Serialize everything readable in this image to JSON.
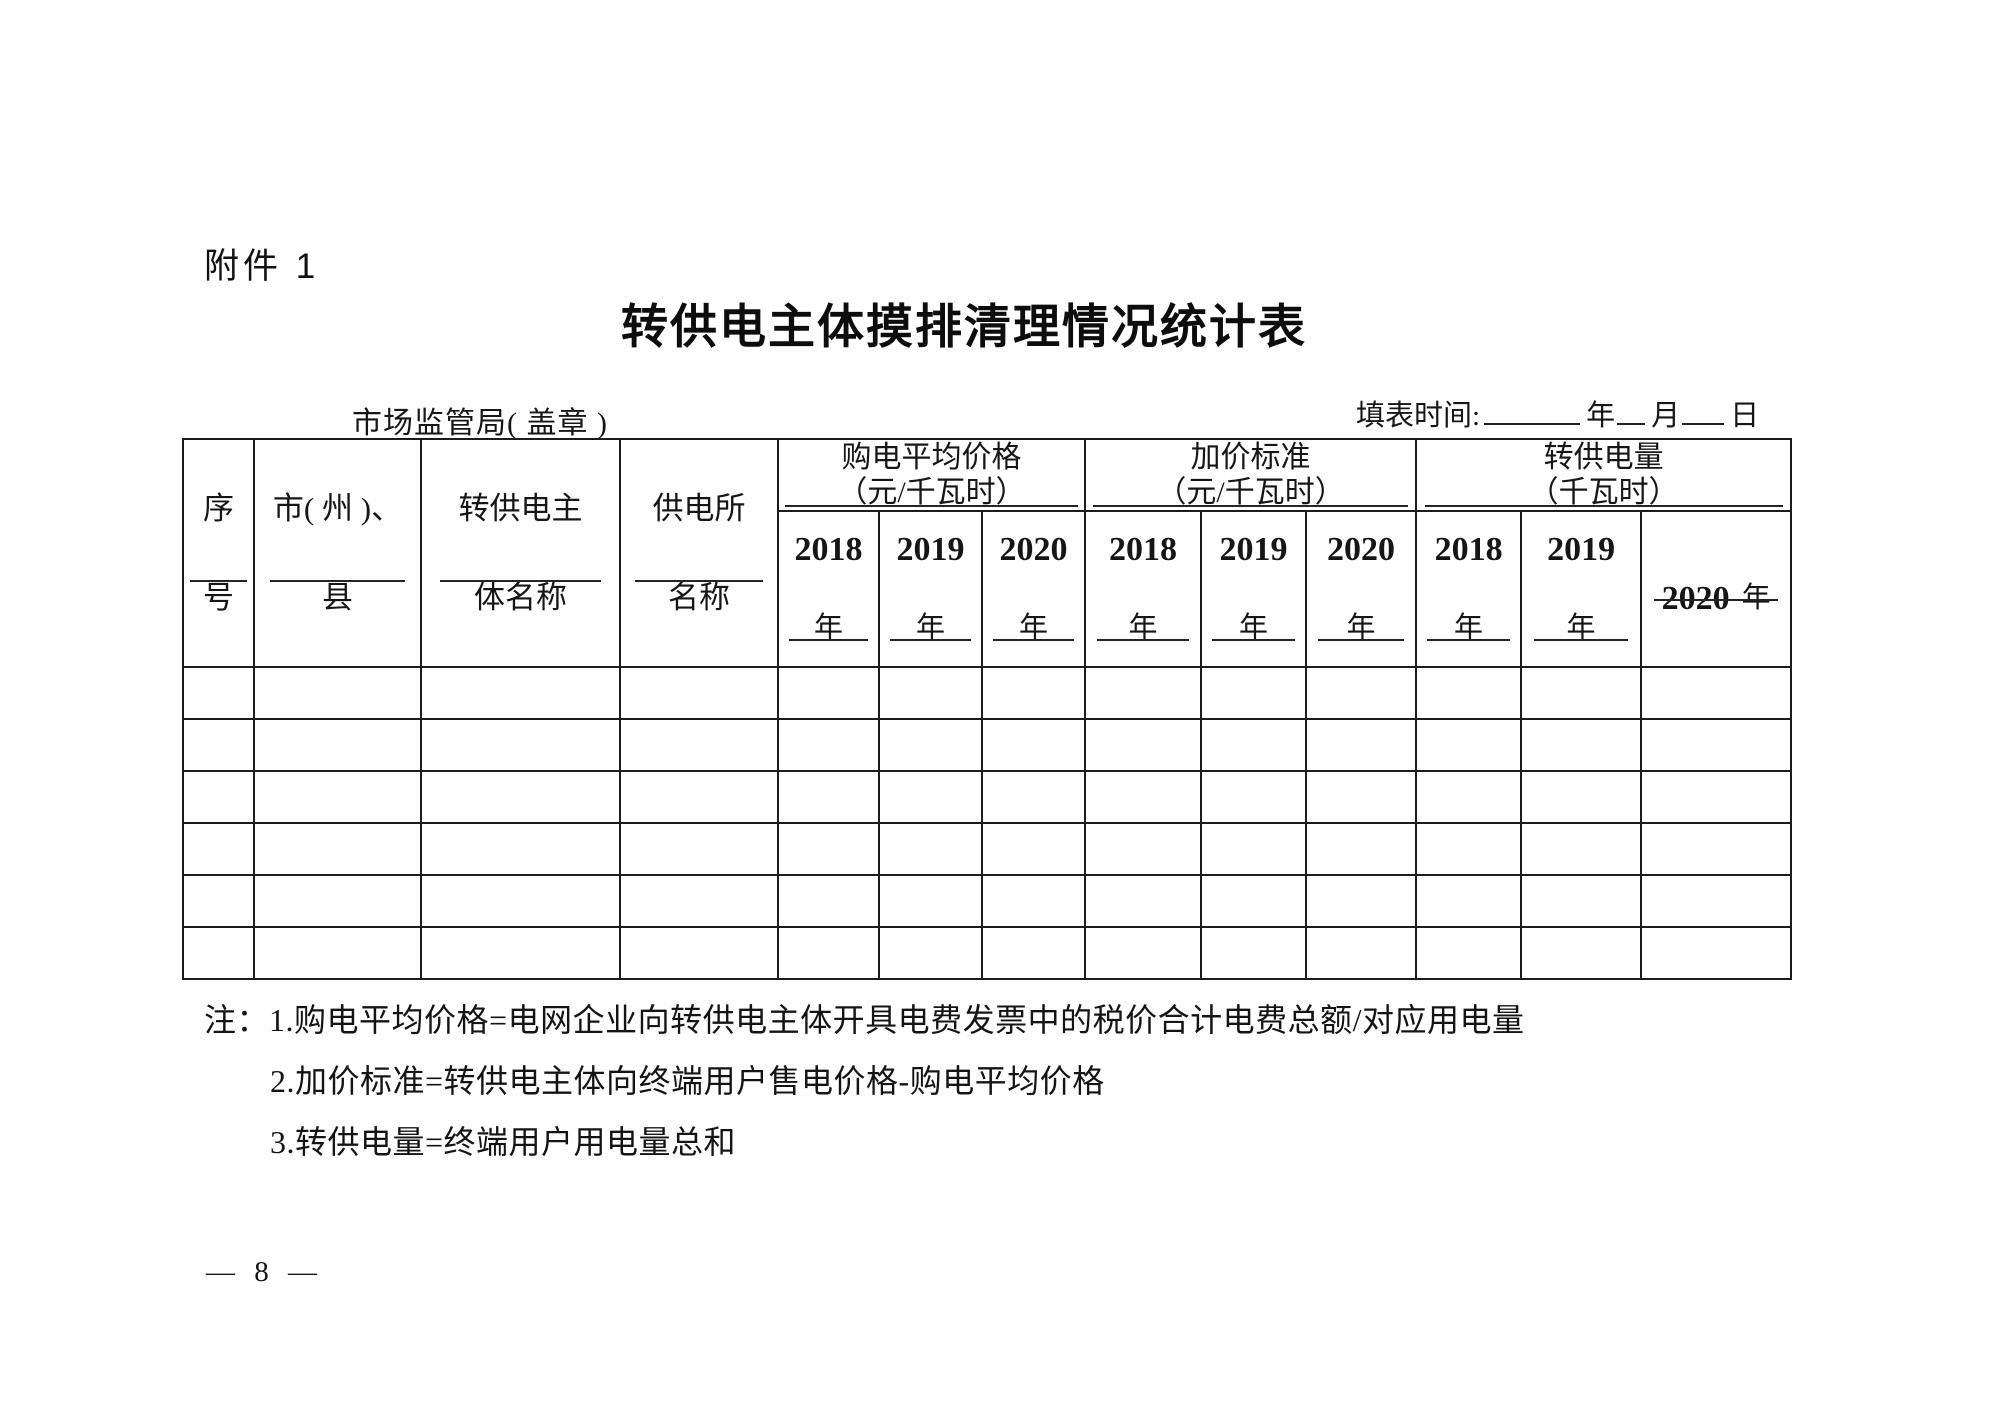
{
  "page": {
    "attachment_label": "附件 1",
    "title": "转供电主体摸排清理情况统计表",
    "seal_line": "市场监管局( 盖章 )",
    "fill_time": {
      "label": "填表时间:",
      "year": "年",
      "month": "月",
      "day": "日"
    },
    "page_number": "— 8 —"
  },
  "table": {
    "col_headers": [
      {
        "l1": "序",
        "l2": "号"
      },
      {
        "l1": "市( 州 )、",
        "l2": "县"
      },
      {
        "l1": "转供电主",
        "l2": "体名称"
      },
      {
        "l1": "供电所",
        "l2": "名称"
      }
    ],
    "group_headers": [
      {
        "l1": "购电平均价格",
        "l2": "（元/千瓦时）"
      },
      {
        "l1": "加价标准",
        "l2": "（元/千瓦时）"
      },
      {
        "l1": "转供电量",
        "l2": "（千瓦时）"
      }
    ],
    "year_cells": [
      {
        "num": "2018",
        "suffix": "年"
      },
      {
        "num": "2019",
        "suffix": "年"
      },
      {
        "num": "2020",
        "suffix": "年"
      },
      {
        "num": "2018",
        "suffix": "年"
      },
      {
        "num": "2019",
        "suffix": "年"
      },
      {
        "num": "2020",
        "suffix": "年"
      },
      {
        "num": "2018",
        "suffix": "年"
      },
      {
        "num": "2019",
        "suffix": "年"
      },
      {
        "num": "2020",
        "suffix": "年"
      }
    ],
    "body_rows": 6,
    "body_cols": 13
  },
  "notes": {
    "prefix": "注：",
    "items": [
      "1.购电平均价格=电网企业向转供电主体开具电费发票中的税价合计电费总额/对应用电量",
      "2.加价标准=转供电主体向终端用户售电价格-购电平均价格",
      "3.转供电量=终端用户用电量总和"
    ]
  }
}
